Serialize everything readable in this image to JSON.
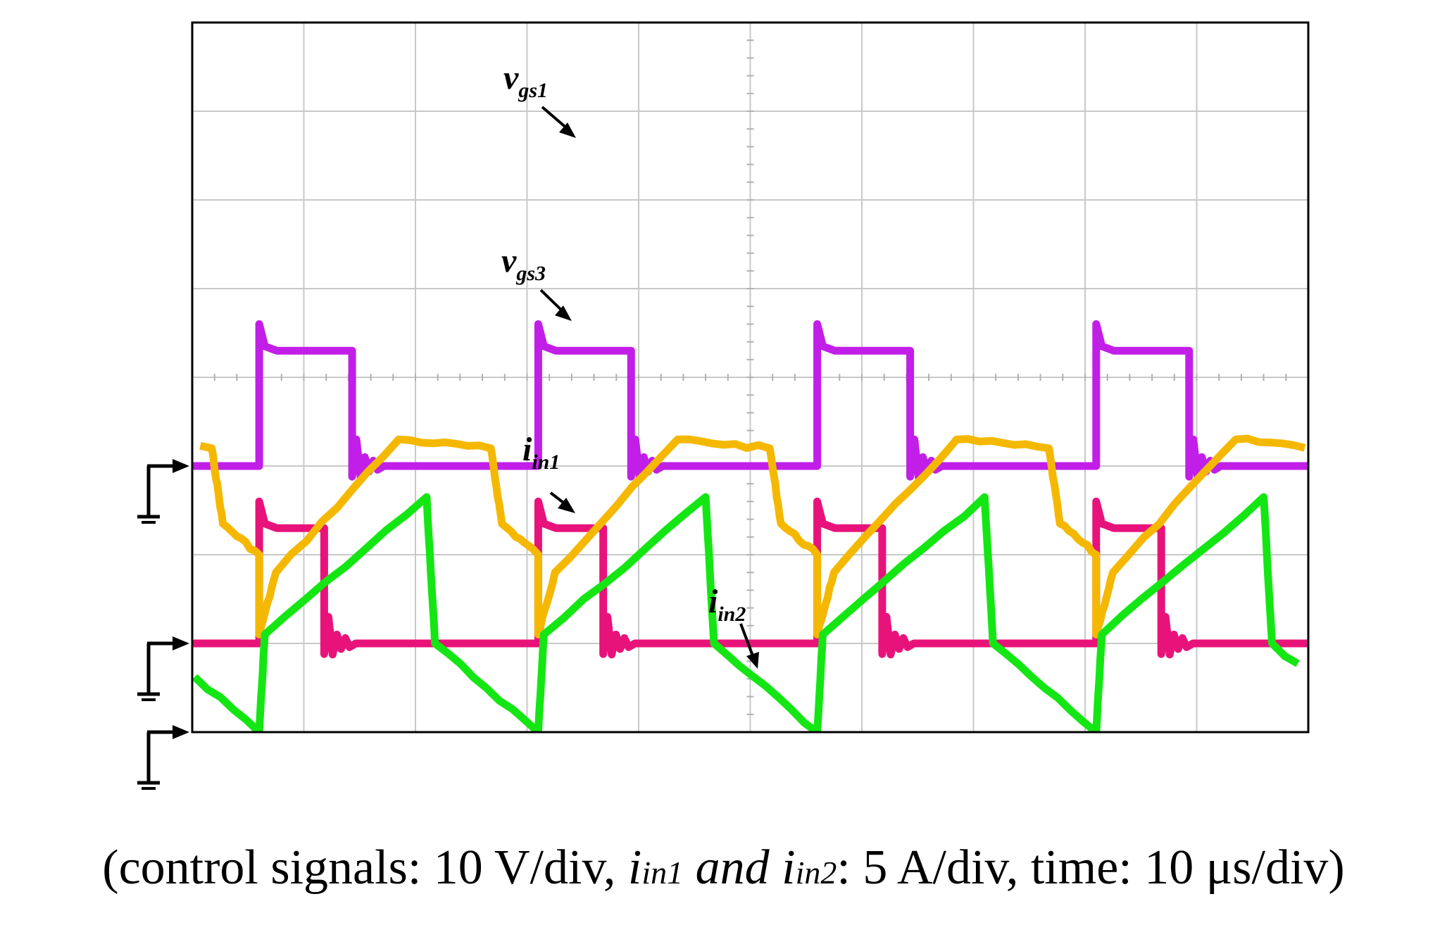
{
  "chart_data": {
    "type": "line",
    "x_divisions": 10,
    "y_divisions": 8,
    "grid": true,
    "periods_shown": 4,
    "series": [
      {
        "name": "vgs1",
        "label_main": "v",
        "label_sub": "gs1",
        "color": "#c11fe8",
        "ground_level_div": 3.0,
        "waveform": "square",
        "high_div": 1.3,
        "on_duty": 0.333
      },
      {
        "name": "vgs3",
        "label_main": "v",
        "label_sub": "gs3",
        "color": "#e8137a",
        "ground_level_div": 1.0,
        "waveform": "square",
        "high_div": 1.3,
        "on_duty": 0.233
      },
      {
        "name": "iin1",
        "label_main": "i",
        "label_sub": "in1",
        "color": "#f5b800",
        "ground_level_div": 0.0,
        "waveform": "current",
        "points_div": [
          [
            0.0,
            1.1
          ],
          [
            0.06,
            1.8
          ],
          [
            0.5,
            3.3
          ],
          [
            0.83,
            3.2
          ],
          [
            0.87,
            2.35
          ],
          [
            1.0,
            2.0
          ]
        ]
      },
      {
        "name": "iin2",
        "label_main": "i",
        "label_sub": "in2",
        "color": "#14e614",
        "ground_level_div": 0.0,
        "waveform": "current",
        "points_div": [
          [
            0.0,
            0.0
          ],
          [
            0.02,
            1.1
          ],
          [
            0.6,
            2.65
          ],
          [
            0.63,
            1.0
          ],
          [
            1.0,
            0.0
          ]
        ]
      }
    ]
  },
  "caption": {
    "prefix": "(control signals: 10 V/div, ",
    "i1_main": "i",
    "i1_sub": "in1",
    "and": " and ",
    "i2_main": "i",
    "i2_sub": "in2",
    "suffix": ": 5 A/div, time: 10 μs/div)"
  }
}
